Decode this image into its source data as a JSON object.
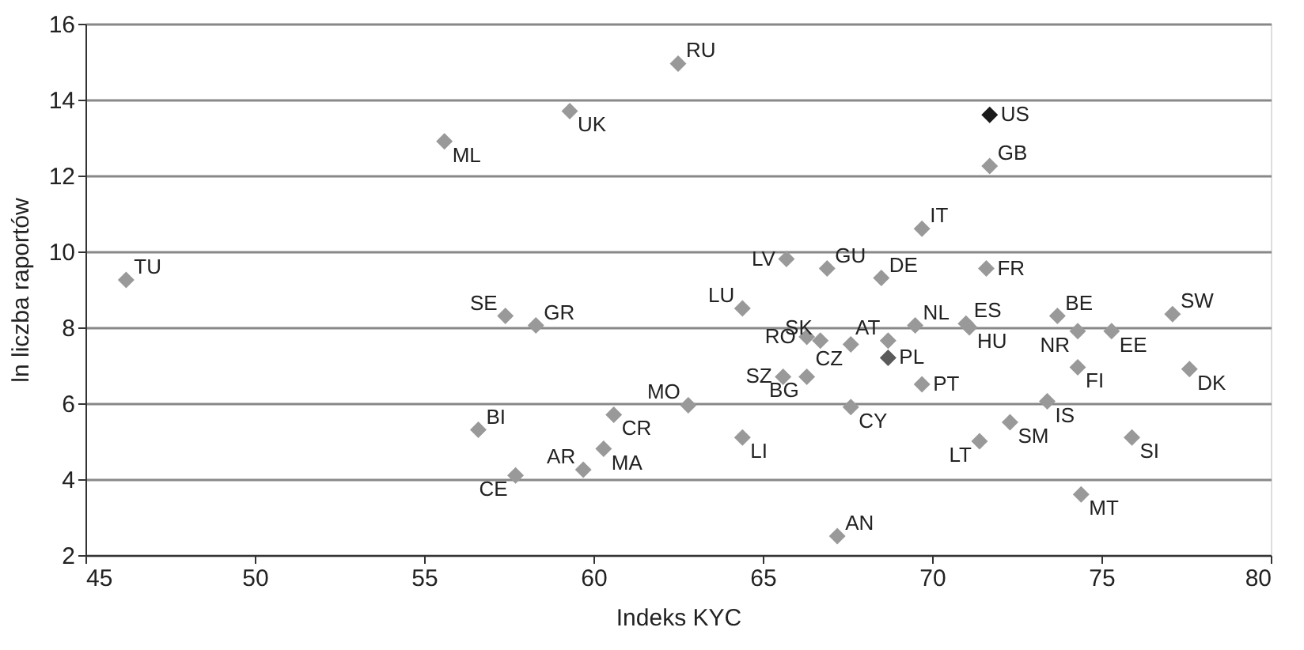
{
  "chart_data": {
    "type": "scatter",
    "xlabel": "Indeks KYC",
    "ylabel": "ln liczba raportów",
    "xlim": [
      45,
      80
    ],
    "xticks": [
      45,
      50,
      55,
      60,
      65,
      70,
      75,
      80
    ],
    "ylim": [
      2,
      16
    ],
    "yticks": [
      2,
      4,
      6,
      8,
      10,
      12,
      14,
      16
    ],
    "grid": "y",
    "marker": "diamond",
    "x": [
      46.2,
      55.6,
      59.3,
      62.5,
      71.7,
      71.7,
      69.7,
      65.7,
      66.9,
      68.5,
      71.6,
      64.4,
      73.7,
      77.1,
      69.5,
      71.0,
      71.1,
      74.3,
      75.3,
      57.4,
      58.3,
      66.3,
      66.7,
      67.6,
      68.7,
      68.7,
      65.6,
      66.3,
      74.3,
      77.6,
      69.7,
      62.8,
      67.6,
      73.4,
      72.3,
      71.4,
      64.4,
      75.9,
      74.4,
      67.2,
      56.6,
      60.6,
      60.3,
      59.7,
      57.7
    ],
    "values": [
      9.25,
      12.9,
      13.7,
      14.95,
      13.6,
      12.25,
      10.6,
      9.8,
      9.55,
      9.3,
      9.55,
      8.5,
      8.3,
      8.35,
      8.05,
      8.1,
      8.0,
      7.9,
      7.9,
      8.3,
      8.05,
      7.75,
      7.65,
      7.55,
      7.65,
      7.2,
      6.7,
      6.7,
      6.95,
      6.9,
      6.5,
      5.95,
      5.9,
      6.05,
      5.5,
      5.0,
      5.1,
      5.1,
      3.6,
      2.5,
      5.3,
      5.7,
      4.8,
      4.25,
      4.1
    ],
    "colors": [
      "#999999",
      "#999999",
      "#999999",
      "#999999",
      "#1a1a1a",
      "#999999",
      "#999999",
      "#999999",
      "#999999",
      "#999999",
      "#999999",
      "#999999",
      "#999999",
      "#999999",
      "#999999",
      "#999999",
      "#999999",
      "#999999",
      "#999999",
      "#999999",
      "#999999",
      "#999999",
      "#999999",
      "#999999",
      "#999999",
      "#5a5a5a",
      "#999999",
      "#999999",
      "#999999",
      "#999999",
      "#999999",
      "#999999",
      "#999999",
      "#999999",
      "#999999",
      "#999999",
      "#999999",
      "#999999",
      "#999999",
      "#999999",
      "#999999",
      "#999999",
      "#999999",
      "#999999",
      "#999999"
    ],
    "annotations": [
      {
        "text": "TU",
        "x": 46.2,
        "y": 9.25
      },
      {
        "text": "ML",
        "x": 55.6,
        "y": 12.9
      },
      {
        "text": "UK",
        "x": 59.3,
        "y": 13.7
      },
      {
        "text": "RU",
        "x": 62.5,
        "y": 14.95
      },
      {
        "text": "US",
        "x": 71.7,
        "y": 13.6
      },
      {
        "text": "GB",
        "x": 71.7,
        "y": 12.25
      },
      {
        "text": "IT",
        "x": 69.7,
        "y": 10.6
      },
      {
        "text": "LV",
        "x": 65.7,
        "y": 9.8
      },
      {
        "text": "GU",
        "x": 66.9,
        "y": 9.55
      },
      {
        "text": "DE",
        "x": 68.5,
        "y": 9.3
      },
      {
        "text": "FR",
        "x": 71.6,
        "y": 9.55
      },
      {
        "text": "LU",
        "x": 64.4,
        "y": 8.5
      },
      {
        "text": "BE",
        "x": 73.7,
        "y": 8.3
      },
      {
        "text": "SW",
        "x": 77.1,
        "y": 8.35
      },
      {
        "text": "NL",
        "x": 69.5,
        "y": 8.05
      },
      {
        "text": "ES",
        "x": 71.0,
        "y": 8.1
      },
      {
        "text": "HU",
        "x": 71.1,
        "y": 8.0
      },
      {
        "text": "NR",
        "x": 74.3,
        "y": 7.9
      },
      {
        "text": "EE",
        "x": 75.3,
        "y": 7.9
      },
      {
        "text": "SE",
        "x": 57.4,
        "y": 8.3
      },
      {
        "text": "GR",
        "x": 58.3,
        "y": 8.05
      },
      {
        "text": "RO",
        "x": 66.3,
        "y": 7.75
      },
      {
        "text": "SK",
        "x": 66.7,
        "y": 7.65
      },
      {
        "text": "CZ",
        "x": 67.6,
        "y": 7.55
      },
      {
        "text": "AT",
        "x": 68.7,
        "y": 7.65
      },
      {
        "text": "PL",
        "x": 68.7,
        "y": 7.2
      },
      {
        "text": "SZ",
        "x": 65.6,
        "y": 6.7
      },
      {
        "text": "BG",
        "x": 66.3,
        "y": 6.7
      },
      {
        "text": "FI",
        "x": 74.3,
        "y": 6.95
      },
      {
        "text": "DK",
        "x": 77.6,
        "y": 6.9
      },
      {
        "text": "PT",
        "x": 69.7,
        "y": 6.5
      },
      {
        "text": "MO",
        "x": 62.8,
        "y": 5.95
      },
      {
        "text": "CY",
        "x": 67.6,
        "y": 5.9
      },
      {
        "text": "IS",
        "x": 73.4,
        "y": 6.05
      },
      {
        "text": "SM",
        "x": 72.3,
        "y": 5.5
      },
      {
        "text": "LT",
        "x": 71.4,
        "y": 5.0
      },
      {
        "text": "LI",
        "x": 64.4,
        "y": 5.1
      },
      {
        "text": "SI",
        "x": 75.9,
        "y": 5.1
      },
      {
        "text": "MT",
        "x": 74.4,
        "y": 3.6
      },
      {
        "text": "AN",
        "x": 67.2,
        "y": 2.5
      },
      {
        "text": "BI",
        "x": 56.6,
        "y": 5.3
      },
      {
        "text": "CR",
        "x": 60.6,
        "y": 5.7
      },
      {
        "text": "MA",
        "x": 60.3,
        "y": 4.8
      },
      {
        "text": "AR",
        "x": 59.7,
        "y": 4.25
      },
      {
        "text": "CE",
        "x": 57.7,
        "y": 4.1
      }
    ]
  }
}
